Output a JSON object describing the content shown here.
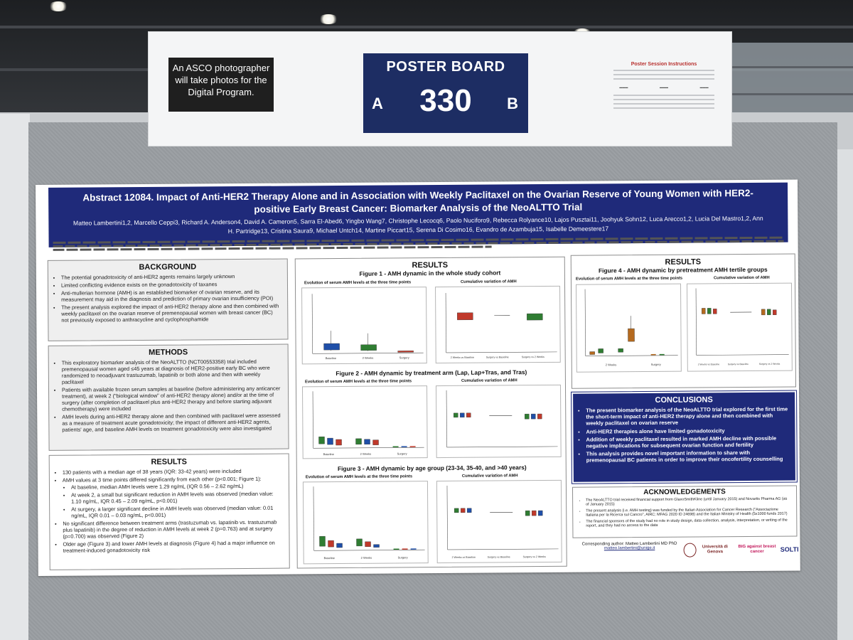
{
  "sign": {
    "photo_note": "An ASCO photographer will take photos for the Digital Program.",
    "board_label": "POSTER BOARD",
    "board_number": "330",
    "side_a": "A",
    "side_b": "B",
    "instructions_title": "Poster Session Instructions"
  },
  "poster": {
    "title": "Abstract 12084. Impact of Anti-HER2 Therapy Alone and in Association with Weekly Paclitaxel on the Ovarian Reserve of Young Women with HER2-positive Early Breast Cancer: Biomarker Analysis of the NeoALTTO Trial",
    "authors": "Matteo Lambertini1,2, Marcello Ceppi3, Richard A. Anderson4, David A. Cameron5, Sarra El-Abed6, Yingbo Wang7, Christophe Lecocq6, Paolo Nuciforo9, Rebecca Rolyance10, Lajos Pusztai11, Joohyuk Sohn12, Luca Arecco1,2, Lucia Del Mastro1,2, Ann H. Partridge13, Cristina Saura9, Michael Untch14, Martine Piccart15, Serena Di Cosimo16, Evandro de Azambuja15, Isabelle Demeestere17",
    "background": {
      "heading": "BACKGROUND",
      "items": [
        "The potential gonadotoxicity of anti-HER2 agents remains largely unknown",
        "Limited conflicting evidence exists on the gonadotoxicity of taxanes",
        "Anti-mullerian hormone (AMH) is an established biomarker of ovarian reserve, and its measurement may aid in the diagnosis and prediction of primary ovarian insufficiency (POI)",
        "The present analysis explored the impact of anti-HER2 therapy alone and then combined with weekly paclitaxel on the ovarian reserve of premenopausal women with breast cancer (BC) not previously exposed to anthracycline and cyclophosphamide"
      ]
    },
    "methods": {
      "heading": "METHODS",
      "items": [
        "This exploratory biomarker analysis of the NeoALTTO (NCT00553358) trial included premenopausal women aged ≤45 years at diagnosis of HER2-positive early BC who were randomized to neoadjuvant trastuzumab, lapatinib or both alone and then with weekly paclitaxel",
        "Patients with available frozen serum samples at baseline (before administering any anticancer treatment), at week 2 (\"biological window\" of anti-HER2 therapy alone) and/or at the time of surgery (after completion of paclitaxel plus anti-HER2 therapy and before starting adjuvant chemotherapy) were included",
        "AMH levels during anti-HER2 therapy alone and then combined with paclitaxel were assessed as a measure of treatment acute gonadotoxicity; the impact of different anti-HER2 agents, patients' age, and baseline AMH levels on treatment gonadotoxicity were also investigated"
      ]
    },
    "results_left": {
      "heading": "RESULTS",
      "items": [
        "130 patients with a median age of 38 years (IQR: 33-42 years) were included",
        "AMH values at 3 time points differed significantly from each other (p<0.001; Figure 1):"
      ],
      "subitems": [
        "At baseline, median AMH levels were 1.29 ng/mL (IQR 0.56 – 2.62 ng/mL)",
        "At week 2, a small but significant reduction in AMH levels was observed (median value: 1.10 ng/mL, IQR 0.45 – 2.09 ng/mL, p<0.001)",
        "At surgery, a larger significant decline in AMH levels was observed (median value: 0.01 ng/mL, IQR 0.01 – 0.03 ng/mL, p<0.001)"
      ],
      "items_after": [
        "No significant difference between treatment arms (trastuzumab vs. lapatinib vs. trastuzumab plus lapatinib) in the degree of reduction in AMH levels at week 2 (p=0.763) and at surgery (p=0.700) was observed (Figure 2)",
        "Older age (Figure 3) and lower AMH levels at diagnosis (Figure 4) had a major influence on treatment-induced gonadotoxicity risk"
      ]
    },
    "results_mid": {
      "heading": "RESULTS",
      "fig1_title": "Figure 1 - AMH dynamic in the whole study cohort",
      "fig1_left_caption": "Evolution of serum AMH levels at the three time points",
      "fig1_right_caption": "Cumulative variation of AMH",
      "fig2_title": "Figure 2 - AMH dynamic by treatment arm (Lap, Lap+Tras, and Tras)",
      "fig2_left_caption": "Evolution of serum AMH levels at the three time points",
      "fig2_right_caption": "Cumulative variation of AMH",
      "fig3_title": "Figure 3 - AMH dynamic by age group (23-34, 35-40, and >40 years)",
      "fig3_left_caption": "Evolution of serum AMH levels at the three time points",
      "fig3_right_caption": "Cumulative variation of AMH",
      "x_baseline": "Baseline",
      "x_2weeks": "2 Weeks",
      "x_surgery": "Surgery",
      "x_2w_vs_base": "2 Weeks vs Baseline",
      "x_surg_vs_base": "Surgery vs Baseline",
      "x_surg_vs_2w": "Surgery vs 2 Weeks"
    },
    "results_right": {
      "heading": "RESULTS",
      "fig4_title": "Figure 4 - AMH dynamic by pretreatment AMH tertile groups",
      "fig4_left_caption": "Evolution of serum AMH levels at the three time points",
      "fig4_right_caption": "Cumulative variation of AMH",
      "x_2weeks": "2 Weeks",
      "x_surgery": "Surgery",
      "x_2w_vs_base": "2 Weeks vs Baseline",
      "x_surg_vs_base": "Surgery vs Baseline",
      "x_surg_vs_2w": "Surgery vs 2 Weeks"
    },
    "conclusions": {
      "heading": "CONCLUSIONS",
      "items": [
        "The present biomarker analysis of the NeoALTTO trial explored for the first time the short-term impact of anti-HER2 therapy alone and then combined with weekly paclitaxel on ovarian reserve",
        "Anti-HER2 therapies alone have limited gonadotoxicity",
        "Addition of weekly paclitaxel resulted in marked AMH decline with possible negative implications for subsequent ovarian function and fertility",
        "This analysis provides novel important information to share with premenopausal BC patients in order to improve their oncofertility counselling"
      ]
    },
    "acknowledgements": {
      "heading": "ACKNOWLEDGEMENTS",
      "items": [
        "The NeoALTTO trial received financial support from GlaxoSmithKline (until January 2015) and Novartis Pharma AG (as of January 2015)",
        "The present analysis (i.e. AMH testing) was funded by the Italian Association for Cancer Research (\"Associazione Italiana per la Ricerca sul Cancro\", AIRC; MFAG 2020 ID 24698) and the Italian Ministry of Health (5x1000 funds 2017)",
        "The financial sponsors of the study had no role in study design, data collection, analysis, interpretation, or writing of the report, and they had no access to the data"
      ]
    },
    "corresponding": {
      "label": "Corresponding author: Matteo Lambertini MD PhD",
      "email": "matteo.lambertini@unige.it"
    },
    "logos": {
      "university": "Università di Genova",
      "big": "BIG against breast cancer",
      "solti": "SOLTI"
    }
  },
  "colors": {
    "header_blue": "#1f2a7a",
    "sign_navy": "#1d2d63",
    "box_green": "#2f7d32",
    "box_blue": "#1f4fa8",
    "box_red": "#c0392b",
    "box_orange": "#b56a1e"
  }
}
